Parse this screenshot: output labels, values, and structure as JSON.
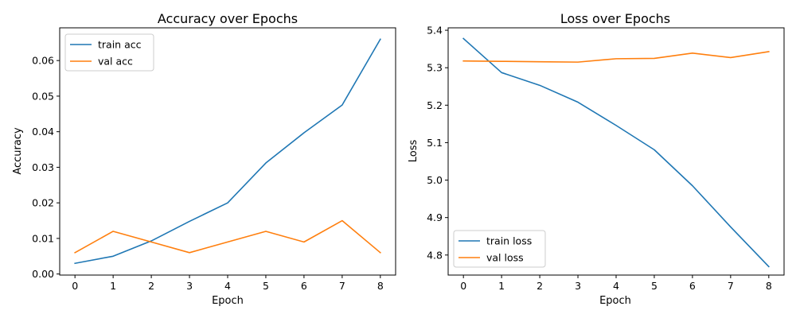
{
  "chart_data": [
    {
      "type": "line",
      "title": "Accuracy over Epochs",
      "xlabel": "Epoch",
      "ylabel": "Accuracy",
      "x": [
        0,
        1,
        2,
        3,
        4,
        5,
        6,
        7,
        8
      ],
      "xticks": [
        "0",
        "1",
        "2",
        "3",
        "4",
        "5",
        "6",
        "7",
        "8"
      ],
      "yticks": [
        "0.00",
        "0.01",
        "0.02",
        "0.03",
        "0.04",
        "0.05",
        "0.06"
      ],
      "xlim": [
        -0.4,
        8.4
      ],
      "ylim": [
        -0.0003,
        0.0692
      ],
      "grid": false,
      "legend_position": "upper left",
      "series": [
        {
          "name": "train acc",
          "color": "#1f77b4",
          "values": [
            0.003,
            0.005,
            0.0093,
            0.0148,
            0.02,
            0.0312,
            0.0397,
            0.0475,
            0.066
          ]
        },
        {
          "name": "val acc",
          "color": "#ff7f0e",
          "values": [
            0.006,
            0.012,
            0.009,
            0.006,
            0.009,
            0.012,
            0.009,
            0.015,
            0.006
          ]
        }
      ]
    },
    {
      "type": "line",
      "title": "Loss over Epochs",
      "xlabel": "Epoch",
      "ylabel": "Loss",
      "x": [
        0,
        1,
        2,
        3,
        4,
        5,
        6,
        7,
        8
      ],
      "xticks": [
        "0",
        "1",
        "2",
        "3",
        "4",
        "5",
        "6",
        "7",
        "8"
      ],
      "yticks": [
        "4.8",
        "4.9",
        "5.0",
        "5.1",
        "5.2",
        "5.3",
        "5.4"
      ],
      "xlim": [
        -0.4,
        8.4
      ],
      "ylim": [
        4.7465,
        5.4065
      ],
      "grid": false,
      "legend_position": "lower left",
      "series": [
        {
          "name": "train loss",
          "color": "#1f77b4",
          "values": [
            5.378,
            5.287,
            5.253,
            5.208,
            5.146,
            5.081,
            4.985,
            4.875,
            4.769
          ]
        },
        {
          "name": "val loss",
          "color": "#ff7f0e",
          "values": [
            5.318,
            5.317,
            5.316,
            5.315,
            5.324,
            5.325,
            5.339,
            5.327,
            5.343
          ]
        }
      ]
    }
  ]
}
